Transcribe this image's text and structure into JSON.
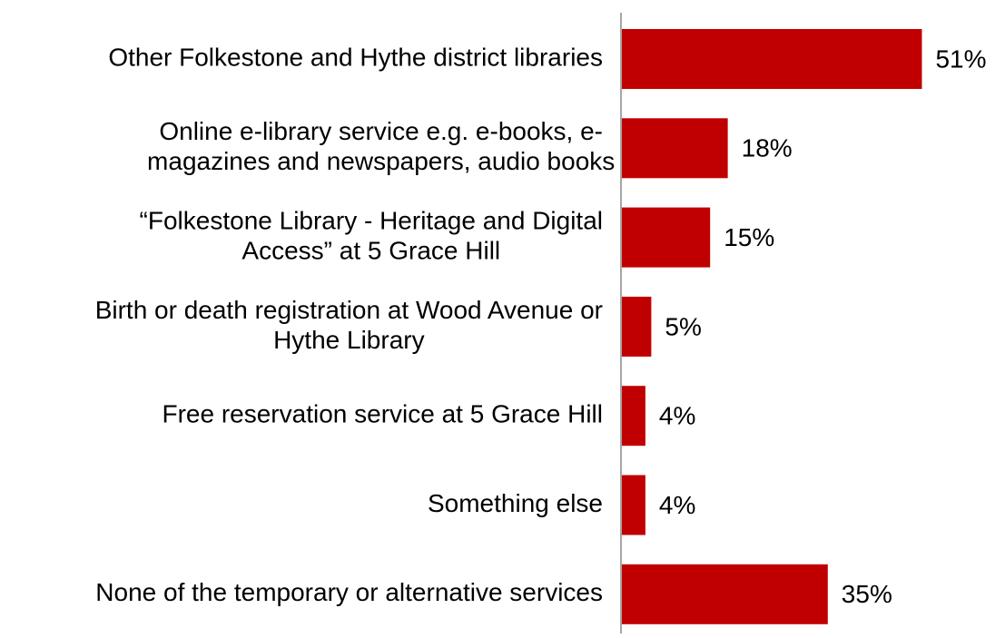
{
  "chart_data": {
    "type": "bar",
    "orientation": "horizontal",
    "title": "",
    "xlabel": "",
    "ylabel": "",
    "xlim": [
      0,
      100
    ],
    "grid": false,
    "legend": "none",
    "categories": [
      [
        "Other Folkestone and Hythe district libraries"
      ],
      [
        "Online e-library service e.g. e-books, e-",
        "magazines and newspapers, audio books"
      ],
      [
        "“Folkestone Library - Heritage and Digital",
        "Access” at 5 Grace Hill"
      ],
      [
        "Birth or death registration at Wood Avenue or",
        "Hythe Library"
      ],
      [
        "Free reservation service at 5 Grace Hill"
      ],
      [
        "Something else"
      ],
      [
        "None of the temporary or alternative services"
      ]
    ],
    "values": [
      51,
      18,
      15,
      5,
      4,
      4,
      35
    ],
    "data_labels": [
      "51%",
      "18%",
      "15%",
      "5%",
      "4%",
      "4%",
      "35%"
    ],
    "colors": {
      "bar": "#c00000",
      "axis": "#a6a6a6",
      "text": "#000000"
    }
  }
}
